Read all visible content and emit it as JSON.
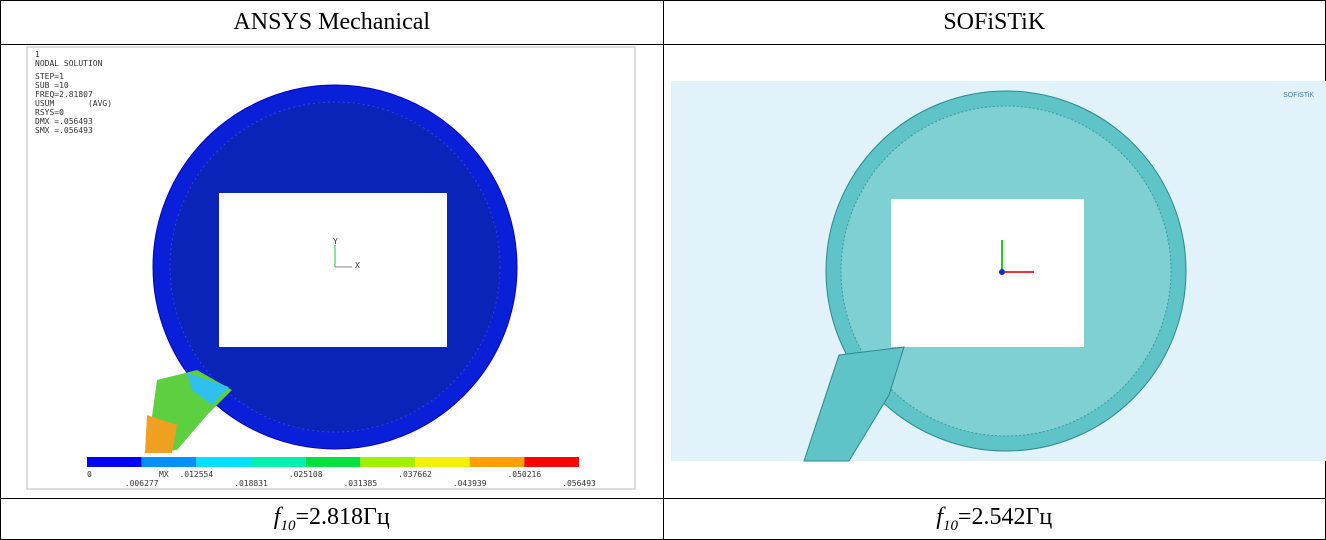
{
  "table": {
    "headers": [
      "ANSYS Mechanical",
      "SOFiSTiK"
    ],
    "ansys": {
      "info": [
        "1",
        "NODAL SOLUTION",
        "STEP=1",
        "SUB =10",
        "FREQ=2.81807",
        "USUM       (AVG)",
        "RSYS=0",
        "DMX =.056493",
        "SMX =.056493"
      ],
      "axes": [
        "Y",
        "X",
        "MX"
      ],
      "legend_top": [
        "0",
        ".012554",
        ".025108",
        ".037662",
        ".050216"
      ],
      "legend_bottom": [
        ".006277",
        ".018831",
        ".031385",
        ".043939",
        ".056493"
      ]
    },
    "sofistik": {
      "logo": "SOFiSTiK"
    },
    "captions": [
      {
        "symbol": "f",
        "subscript": "10",
        "value": "=2.818Гц"
      },
      {
        "symbol": "f",
        "subscript": "10",
        "value": "=2.542Гц"
      }
    ]
  }
}
